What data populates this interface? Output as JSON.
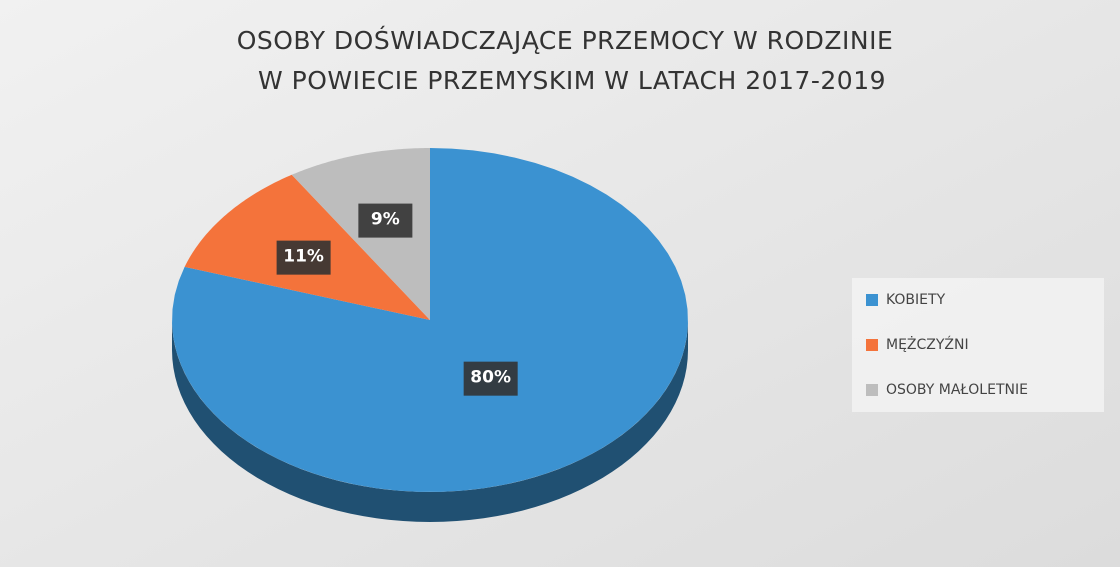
{
  "chart_data": {
    "type": "pie",
    "title": [
      "OSOBY DOŚWIADCZAJĄCE PRZEMOCY W RODZINIE",
      "W POWIECIE PRZEMYSKIM W LATACH 2017-2019"
    ],
    "categories": [
      "KOBIETY",
      "MĘŻCZYŹNI",
      "OSOBY MAŁOLETNIE"
    ],
    "values": [
      80,
      11,
      9
    ],
    "value_labels": [
      "80%",
      "11%",
      "9%"
    ],
    "colors": [
      "#3b92d1",
      "#f4733b",
      "#bdbdbd"
    ],
    "legend": "right"
  }
}
